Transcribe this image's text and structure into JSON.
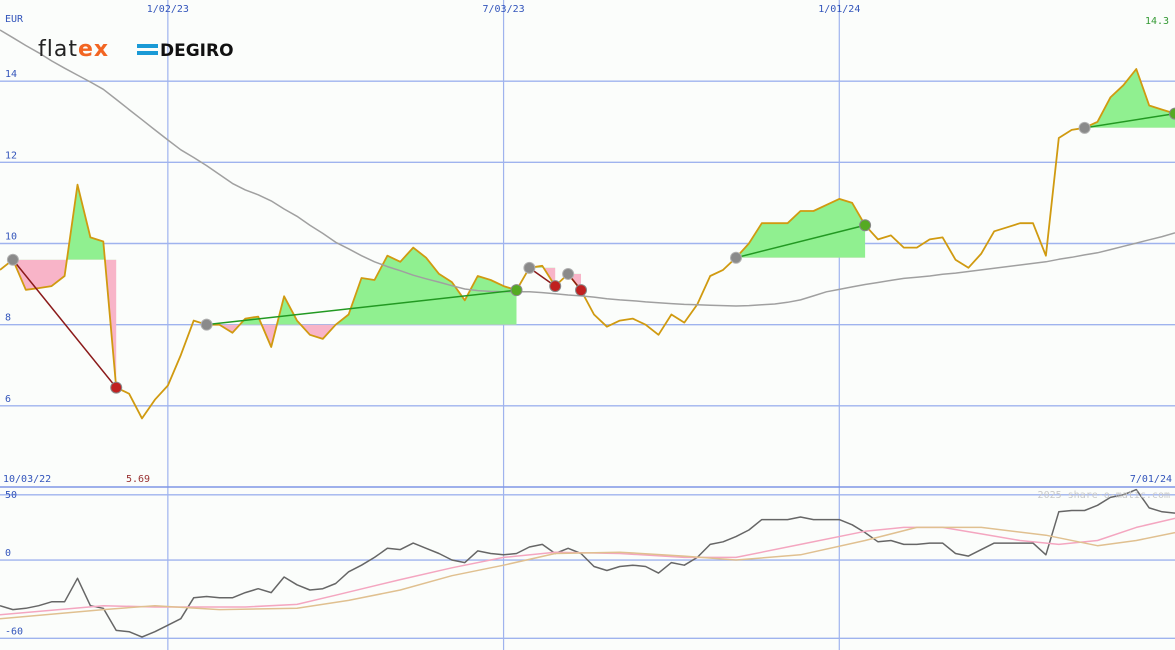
{
  "logo": [
    "flat",
    "ex",
    "DEGIRO"
  ],
  "chart_data": [
    {
      "type": "line",
      "unit": "EUR",
      "x": [
        0,
        1,
        2,
        3,
        4,
        5,
        6,
        7,
        8,
        9,
        10,
        11,
        12,
        13,
        14,
        15,
        16,
        17,
        18,
        19,
        20,
        21,
        22,
        23,
        24,
        25,
        26,
        27,
        28,
        29,
        30,
        31,
        32,
        33,
        34,
        35,
        36,
        37,
        38,
        39,
        40,
        41,
        42,
        43,
        44,
        45,
        46,
        47,
        48,
        49,
        50,
        51,
        52,
        53,
        54,
        55,
        56,
        57,
        58,
        59,
        60,
        61,
        62,
        63,
        64,
        65,
        66,
        67,
        68,
        69,
        70,
        71,
        72,
        73,
        74,
        75,
        76,
        77,
        78,
        79,
        80,
        81,
        82,
        83,
        84,
        85,
        86,
        87,
        88,
        89,
        90,
        91
      ],
      "xlim": [
        0,
        91
      ],
      "xticks": [
        {
          "value": 0,
          "label": "10/03/22"
        },
        {
          "value": 13,
          "label": "1/02/23"
        },
        {
          "value": 39,
          "label": "7/03/23"
        },
        {
          "value": 65,
          "label": "1/01/24"
        },
        {
          "value": 91,
          "label": "7/01/24"
        }
      ],
      "ylim": [
        4,
        16
      ],
      "yticks": [
        6,
        8,
        10,
        12,
        14
      ],
      "grid": true,
      "series": [
        {
          "color": "#d09a10",
          "values": [
            9.35,
            9.6,
            8.86,
            8.9,
            8.95,
            9.2,
            11.45,
            10.15,
            10.05,
            6.45,
            6.3,
            5.69,
            6.15,
            6.5,
            7.25,
            8.1,
            8.0,
            8.0,
            7.8,
            8.15,
            8.2,
            7.45,
            8.7,
            8.1,
            7.75,
            7.65,
            8.0,
            8.25,
            9.15,
            9.1,
            9.7,
            9.55,
            9.9,
            9.65,
            9.25,
            9.05,
            8.6,
            9.2,
            9.1,
            8.95,
            8.85,
            9.4,
            9.45,
            8.95,
            9.25,
            8.85,
            8.25,
            7.95,
            8.1,
            8.15,
            8.0,
            7.75,
            8.25,
            8.05,
            8.5,
            9.2,
            9.35,
            9.65,
            10.0,
            10.5,
            10.5,
            10.5,
            10.8,
            10.8,
            10.95,
            11.1,
            11.0,
            10.45,
            10.1,
            10.2,
            9.9,
            9.9,
            10.1,
            10.15,
            9.6,
            9.4,
            9.75,
            10.3,
            10.4,
            10.5,
            10.5,
            9.7,
            12.6,
            12.8,
            12.85,
            13.0,
            13.6,
            13.9,
            14.3,
            13.4,
            13.3,
            13.2
          ]
        },
        {
          "color": "#a0a0a0",
          "values": [
            15.26,
            15.07,
            14.88,
            14.7,
            14.5,
            14.32,
            14.15,
            13.98,
            13.8,
            13.55,
            13.3,
            13.05,
            12.8,
            12.55,
            12.31,
            12.12,
            11.92,
            11.7,
            11.48,
            11.32,
            11.2,
            11.05,
            10.85,
            10.67,
            10.45,
            10.25,
            10.03,
            9.87,
            9.7,
            9.55,
            9.43,
            9.33,
            9.22,
            9.13,
            9.05,
            8.96,
            8.88,
            8.84,
            8.82,
            8.81,
            8.81,
            8.81,
            8.79,
            8.76,
            8.73,
            8.71,
            8.68,
            8.64,
            8.61,
            8.59,
            8.56,
            8.54,
            8.52,
            8.5,
            8.49,
            8.48,
            8.47,
            8.46,
            8.47,
            8.49,
            8.51,
            8.55,
            8.61,
            8.71,
            8.81,
            8.87,
            8.93,
            8.99,
            9.04,
            9.09,
            9.14,
            9.17,
            9.2,
            9.24,
            9.27,
            9.31,
            9.35,
            9.39,
            9.43,
            9.47,
            9.51,
            9.55,
            9.61,
            9.66,
            9.72,
            9.77,
            9.85,
            9.93,
            10.01,
            10.09,
            10.17,
            10.26
          ]
        }
      ],
      "signals": [
        {
          "start": 1,
          "end": 9,
          "color": "#8b1a1a",
          "exit_color": "#c02020"
        },
        {
          "start": 16,
          "end": 40,
          "color": "#229922",
          "exit_color": "#55aa22"
        },
        {
          "start": 41,
          "end": 43,
          "color": "#8b1a1a",
          "exit_color": "#c02020"
        },
        {
          "start": 44,
          "end": 45,
          "color": "#8b1a1a",
          "exit_color": "#c02020"
        },
        {
          "start": 57,
          "end": 67,
          "color": "#229922",
          "exit_color": "#55aa22"
        },
        {
          "start": 84,
          "end": 91,
          "color": "#229922",
          "exit_color": "#55aa22"
        }
      ],
      "annotations": [
        {
          "text": "14.3",
          "color": "#339933"
        },
        {
          "text": "5.69",
          "color": "#993333"
        }
      ]
    },
    {
      "type": "line",
      "watermark": "2025 share-o-matic.com",
      "xlim": [
        0,
        91
      ],
      "ylim": [
        -69,
        56
      ],
      "yticks": [
        50,
        0,
        -60
      ],
      "series": [
        {
          "color": "#666666",
          "x": [
            0,
            1,
            2,
            3,
            4,
            5,
            6,
            7,
            8,
            9,
            10,
            11,
            12,
            13,
            14,
            15,
            16,
            17,
            18,
            19,
            20,
            21,
            22,
            23,
            24,
            25,
            26,
            27,
            28,
            29,
            30,
            31,
            32,
            33,
            34,
            35,
            36,
            37,
            38,
            39,
            40,
            41,
            42,
            43,
            44,
            45,
            46,
            47,
            48,
            49,
            50,
            51,
            52,
            53,
            54,
            55,
            56,
            57,
            58,
            59,
            60,
            61,
            62,
            63,
            64,
            65,
            66,
            67,
            68,
            69,
            70,
            71,
            72,
            73,
            74,
            75,
            76,
            77,
            78,
            79,
            80,
            81,
            82,
            83,
            84,
            85,
            86,
            87,
            88,
            89,
            90,
            91
          ],
          "values": [
            -35,
            -38,
            -37,
            -35,
            -32,
            -32,
            -14,
            -35,
            -37,
            -54,
            -55,
            -59,
            -55,
            -50,
            -45,
            -29,
            -28,
            -29,
            -29,
            -25,
            -22,
            -25,
            -13,
            -19,
            -23,
            -22,
            -18,
            -9,
            -4,
            2,
            9,
            8,
            13,
            9,
            5,
            0,
            -2,
            7,
            5,
            4,
            5,
            10,
            12,
            5,
            9,
            5,
            -5,
            -8,
            -5,
            -4,
            -5,
            -10,
            -2,
            -4,
            2,
            12,
            14,
            18,
            23,
            31,
            31,
            31,
            33,
            31,
            31,
            31,
            27,
            21,
            14,
            15,
            12,
            12,
            13,
            13,
            5,
            3,
            8,
            13,
            13,
            13,
            13,
            4,
            37,
            38,
            38,
            42,
            48,
            50,
            54,
            40,
            37,
            36
          ]
        },
        {
          "color": "#f4a6c0",
          "x": [
            0,
            8,
            12,
            19,
            23,
            26,
            31,
            35,
            39,
            43,
            48,
            53,
            57,
            62,
            67,
            70,
            73,
            76,
            79,
            82,
            85,
            88,
            91
          ],
          "values": [
            -42,
            -35,
            -36,
            -36,
            -34,
            -27,
            -15,
            -6,
            2,
            6,
            5,
            2,
            2,
            12,
            22,
            25,
            25,
            20,
            15,
            12,
            15,
            25,
            32
          ]
        },
        {
          "color": "#e0c090",
          "x": [
            0,
            8,
            12,
            17,
            23,
            27,
            31,
            35,
            39,
            43,
            48,
            53,
            57,
            62,
            67,
            71,
            76,
            81,
            85,
            88,
            91
          ],
          "values": [
            -45,
            -38,
            -35,
            -38,
            -37,
            -31,
            -23,
            -12,
            -4,
            5,
            6,
            3,
            0,
            4,
            15,
            25,
            25,
            19,
            11,
            15,
            21
          ]
        }
      ]
    }
  ]
}
